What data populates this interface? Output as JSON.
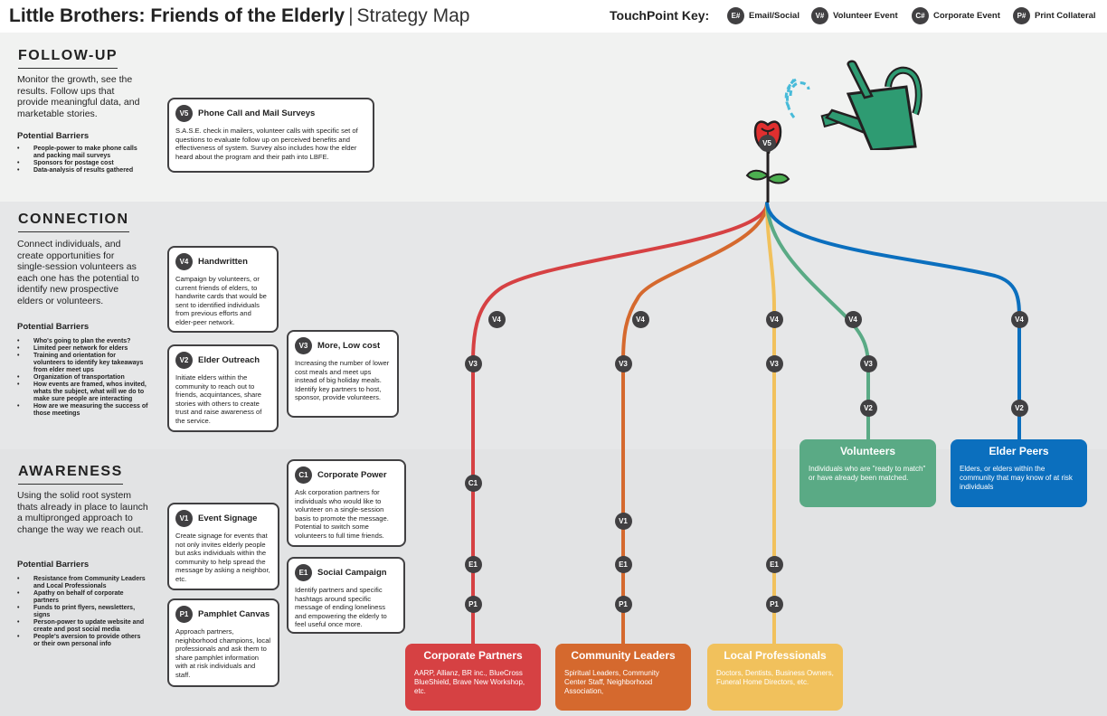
{
  "header": {
    "title": "Little Brothers: Friends of the Elderly",
    "separator": "|",
    "subtitle": "Strategy Map",
    "key_title": "TouchPoint Key:",
    "key": [
      {
        "code": "E#",
        "label": "Email/Social"
      },
      {
        "code": "V#",
        "label": "Volunteer Event"
      },
      {
        "code": "C#",
        "label": "Corporate Event"
      },
      {
        "code": "P#",
        "label": "Print Collateral"
      }
    ]
  },
  "sections": {
    "followup": {
      "title": "FOLLOW-UP",
      "description": "Monitor the growth, see the results. Follow ups that provide meaningful data, and marketable stories.",
      "barriers_title": "Potential Barriers",
      "barriers": [
        "People-power to make phone calls and packing mail surveys",
        "Sponsors for postage cost",
        "Data-analysis of results gathered"
      ]
    },
    "connection": {
      "title": "CONNECTION",
      "description": "Connect individuals, and create opportunities for single-session volunteers as each one has the potential to identify new prospective elders or volunteers.",
      "barriers_title": "Potential Barriers",
      "barriers": [
        "Who's going to plan the events?",
        "Limited peer network for elders",
        "Training and orientation for volunteers to identify key takeaways from elder meet ups",
        "Organization of transportation",
        "How events are framed, whos invited, whats the subject, what will we do to make sure people are interacting",
        "How are we measuring the success of those meetings"
      ]
    },
    "awareness": {
      "title": "AWARENESS",
      "description": "Using the solid root system thats already in place to launch a multipronged approach to change the way we reach out.",
      "barriers_title": "Potential Barriers",
      "barriers": [
        "Resistance from Community Leaders and Local Professionals",
        "Apathy on behalf of corporate partners",
        "Funds to print flyers, newsletters, signs",
        "Person-power to update website and create and post social media",
        "People's aversion to provide others or their own personal info"
      ]
    }
  },
  "cards": {
    "v5": {
      "code": "V5",
      "title": "Phone Call and Mail Surveys",
      "text": "S.A.S.E. check in mailers, volunteer calls with specific set of questions to evaluate follow up on perceived benefits and effectiveness of system. Survey also includes how the elder heard about the program and their path into LBFE."
    },
    "v4": {
      "code": "V4",
      "title": "Handwritten",
      "text": "Campaign by volunteers, or current friends of elders, to handwrite cards that would be sent to identified individuals from previous efforts and elder-peer network."
    },
    "v2": {
      "code": "V2",
      "title": "Elder Outreach",
      "text": "Initiate elders within the community to reach out to friends, acquintances, share stories with others to create trust and raise awareness of the service."
    },
    "v3": {
      "code": "V3",
      "title": "More, Low cost",
      "text": "Increasing the number of lower cost meals and meet ups instead of big holiday meals. Identify key partners to host, sponsor, provide volunteers."
    },
    "c1": {
      "code": "C1",
      "title": "Corporate Power",
      "text": "Ask corporation partners for individuals who would like to volunteer on a single-session basis to promote the message. Potential to switch some volunteers to full time friends."
    },
    "v1": {
      "code": "V1",
      "title": "Event Signage",
      "text": "Create signage for events that not only invites elderly people but asks individuals within the community to help spread the message by asking a neighbor, etc."
    },
    "e1": {
      "code": "E1",
      "title": "Social Campaign",
      "text": "Identify partners and specific hashtags around specific message of ending loneliness and empowering the elderly to feel useful once more."
    },
    "p1": {
      "code": "P1",
      "title": "Pamphlet Canvas",
      "text": "Approach partners, neighborhood champions, local professionals and ask them to share pamphlet information with at risk individuals and staff."
    }
  },
  "audiences": {
    "volunteers": {
      "title": "Volunteers",
      "text": "Individuals who are \"ready to match\" or have already been matched.",
      "color": "#5aaa85"
    },
    "elder_peers": {
      "title": "Elder Peers",
      "text": "Elders, or elders within the community that may know of at risk individuals",
      "color": "#0b6fbe"
    },
    "corporate": {
      "title": "Corporate Partners",
      "text": "AARP, Allianz, BR inc., BlueCross BlueShield, Brave New Workshop, etc.",
      "color": "#d64143"
    },
    "community": {
      "title": "Community Leaders",
      "text": "Spiritual Leaders, Community Center Staff, Neighborhood Association,",
      "color": "#d5692e"
    },
    "local": {
      "title": "Local Professionals",
      "text": "Doctors, Dentists, Business Owners, Funeral Home Directors, etc.",
      "color": "#f1c15c"
    }
  },
  "routes": [
    {
      "name": "corporate",
      "color": "#d64143",
      "nodes": [
        "V4",
        "V3",
        "C1",
        "E1",
        "P1"
      ]
    },
    {
      "name": "community",
      "color": "#d5692e",
      "nodes": [
        "V4",
        "V3",
        "V1",
        "E1",
        "P1"
      ]
    },
    {
      "name": "local",
      "color": "#f1c15c",
      "nodes": [
        "V4",
        "V3",
        "E1",
        "P1"
      ]
    },
    {
      "name": "volunteers",
      "color": "#5aaa85",
      "nodes": [
        "V4",
        "V3",
        "V2"
      ]
    },
    {
      "name": "elder-peers",
      "color": "#0b6fbe",
      "nodes": [
        "V4",
        "V2"
      ]
    }
  ],
  "rose_badge": "V5",
  "icons": {
    "rose": "rose-icon",
    "watering_can": "watering-can-icon"
  }
}
